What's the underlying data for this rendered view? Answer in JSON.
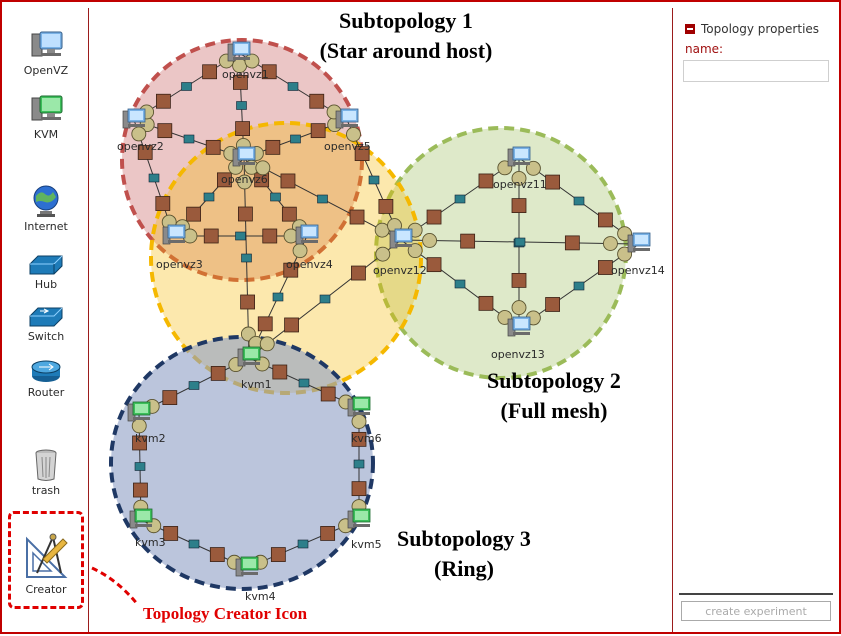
{
  "palette": {
    "items": [
      {
        "label": "OpenVZ",
        "icon": "openvz-computer-icon"
      },
      {
        "label": "KVM",
        "icon": "kvm-computer-icon"
      },
      {
        "label": "Internet",
        "icon": "internet-globe-icon"
      },
      {
        "label": "Hub",
        "icon": "hub-icon"
      },
      {
        "label": "Switch",
        "icon": "switch-icon"
      },
      {
        "label": "Router",
        "icon": "router-icon"
      },
      {
        "label": "trash",
        "icon": "trash-icon"
      },
      {
        "label": "Creator",
        "icon": "creator-compass-ruler-icon"
      }
    ]
  },
  "annotations": {
    "creator_caption": "Topology Creator Icon",
    "subtopologies": [
      {
        "line1": "Subtopology 1",
        "line2": "(Star around host)",
        "color": "#c0504d"
      },
      {
        "line1": "Subtopology 2",
        "line2": "(Full mesh)",
        "color": "#9bbb59"
      },
      {
        "line1": "Subtopology 3",
        "line2": "(Ring)",
        "color": "#1f3864"
      }
    ],
    "overlap_color": "#f5b800"
  },
  "topology": {
    "nodes": {
      "openvz1": "openvz1",
      "openvz2": "openvz2",
      "openvz3": "openvz3",
      "openvz4": "openvz4",
      "openvz5": "openvz5",
      "openvz6": "openvz6",
      "openvz11": "openvz11",
      "openvz12": "openvz12",
      "openvz13": "openvz13",
      "openvz14": "openvz14",
      "kvm1": "kvm1",
      "kvm2": "kvm2",
      "kvm3": "kvm3",
      "kvm4": "kvm4",
      "kvm5": "kvm5",
      "kvm6": "kvm6"
    }
  },
  "properties": {
    "title": "Topology properties",
    "name_label": "name:",
    "name_value": "",
    "create_button": "create experiment"
  }
}
